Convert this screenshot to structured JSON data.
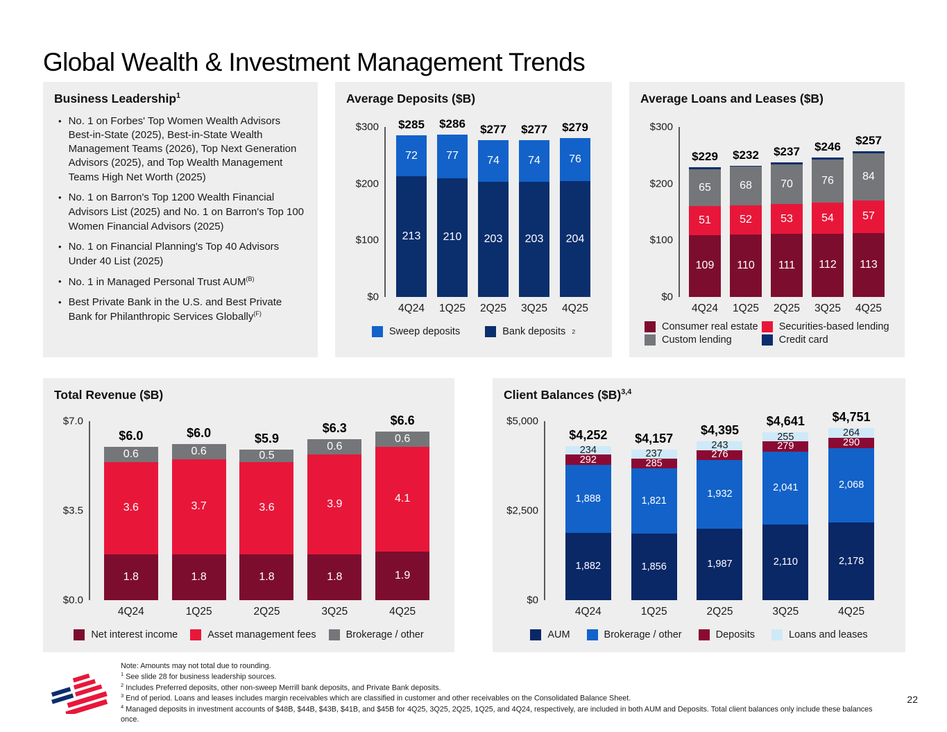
{
  "slide": {
    "title": "Global Wealth & Investment Management Trends",
    "page_number": "22"
  },
  "leadership": {
    "title": "Business Leadership",
    "title_sup": "1",
    "bullets": [
      {
        "text": "No. 1 on Forbes' Top Women Wealth Advisors Best-in-State (2025), Best-in-State Wealth Management Teams (2026), Top Next Generation Advisors (2025), and Top Wealth Management Teams High Net Worth (2025)",
        "sup": ""
      },
      {
        "text": "No. 1 on Barron's Top 1200 Wealth Financial Advisors List (2025) and No. 1 on Barron's Top 100 Women Financial Advisors (2025)",
        "sup": ""
      },
      {
        "text": "No. 1 on Financial Planning's Top 40 Advisors Under 40 List (2025)",
        "sup": ""
      },
      {
        "text": "No. 1 in Managed Personal Trust AUM",
        "sup": "(B)"
      },
      {
        "text": "Best Private Bank in the U.S. and Best Private Bank for Philanthropic Services Globally",
        "sup": "(F)"
      }
    ]
  },
  "colors": {
    "navy": "#0b2e6d",
    "bright_blue": "#1262c9",
    "red": "#e8173a",
    "maroon": "#7d0d2e",
    "deposits_maroon": "#8a0a33",
    "gray": "#747679",
    "light_blue": "#cfe9f8",
    "panel_bg": "#eeeeee",
    "axis": "#58595b"
  },
  "chart_data": [
    {
      "id": "average-deposits",
      "type": "bar",
      "stacked": true,
      "title": "Average Deposits ($B)",
      "title_sup": "",
      "categories": [
        "4Q24",
        "1Q25",
        "2Q25",
        "3Q25",
        "4Q25"
      ],
      "totals": [
        "$285",
        "$286",
        "$277",
        "$277",
        "$279"
      ],
      "ylim": [
        0,
        300
      ],
      "yticks": [
        "$300",
        "$200",
        "$100",
        "$0"
      ],
      "grid": false,
      "legend_position": "bottom",
      "series": [
        {
          "name": "Bank deposits",
          "color": "#0b2e6d",
          "values": [
            213,
            210,
            203,
            203,
            204
          ],
          "labels": [
            "213",
            "210",
            "203",
            "203",
            "204"
          ],
          "label_color": "#ffffff",
          "show_labels": true
        },
        {
          "name": "Sweep deposits",
          "color": "#1262c9",
          "values": [
            72,
            77,
            74,
            74,
            76
          ],
          "labels": [
            "72",
            "77",
            "74",
            "74",
            "76"
          ],
          "label_color": "#ffffff",
          "show_labels": true
        }
      ],
      "legend": [
        {
          "label": "Sweep deposits",
          "sup": "",
          "color": "#1262c9"
        },
        {
          "label": "Bank deposits",
          "sup": "2",
          "color": "#0b2e6d"
        }
      ]
    },
    {
      "id": "average-loans-leases",
      "type": "bar",
      "stacked": true,
      "title": "Average Loans and Leases ($B)",
      "title_sup": "",
      "categories": [
        "4Q24",
        "1Q25",
        "2Q25",
        "3Q25",
        "4Q25"
      ],
      "totals": [
        "$229",
        "$232",
        "$237",
        "$246",
        "$257"
      ],
      "ylim": [
        0,
        300
      ],
      "yticks": [
        "$300",
        "$200",
        "$100",
        "$0"
      ],
      "grid": false,
      "legend_position": "bottom",
      "series": [
        {
          "name": "Consumer real estate",
          "color": "#7d0d2e",
          "values": [
            109,
            110,
            111,
            112,
            113
          ],
          "labels": [
            "109",
            "110",
            "111",
            "112",
            "113"
          ],
          "label_color": "#ffffff",
          "show_labels": true
        },
        {
          "name": "Securities-based lending",
          "color": "#e8173a",
          "values": [
            51,
            52,
            53,
            54,
            57
          ],
          "labels": [
            "51",
            "52",
            "53",
            "54",
            "57"
          ],
          "label_color": "#ffffff",
          "show_labels": true
        },
        {
          "name": "Custom lending",
          "color": "#747679",
          "values": [
            65,
            68,
            70,
            76,
            84
          ],
          "labels": [
            "65",
            "68",
            "70",
            "76",
            "84"
          ],
          "label_color": "#ffffff",
          "show_labels": true
        },
        {
          "name": "Credit card",
          "color": "#0b2e6d",
          "values": [
            4,
            2,
            3,
            4,
            3
          ],
          "labels": [
            "",
            "",
            "",
            "",
            ""
          ],
          "label_color": "#ffffff",
          "show_labels": false
        }
      ],
      "legend": [
        {
          "label": "Consumer real estate",
          "sup": "",
          "color": "#7d0d2e"
        },
        {
          "label": "Securities-based lending",
          "sup": "",
          "color": "#e8173a"
        },
        {
          "label": "Custom lending",
          "sup": "",
          "color": "#747679"
        },
        {
          "label": "Credit card",
          "sup": "",
          "color": "#0b2e6d"
        }
      ]
    },
    {
      "id": "total-revenue",
      "type": "bar",
      "stacked": true,
      "title": "Total Revenue ($B)",
      "title_sup": "",
      "categories": [
        "4Q24",
        "1Q25",
        "2Q25",
        "3Q25",
        "4Q25"
      ],
      "totals": [
        "$6.0",
        "$6.0",
        "$5.9",
        "$6.3",
        "$6.6"
      ],
      "ylim": [
        0,
        7
      ],
      "yticks": [
        "$7.0",
        "$3.5",
        "$0.0"
      ],
      "grid": false,
      "legend_position": "bottom",
      "series": [
        {
          "name": "Net interest income",
          "color": "#7d0d2e",
          "values": [
            1.8,
            1.8,
            1.8,
            1.8,
            1.9
          ],
          "labels": [
            "1.8",
            "1.8",
            "1.8",
            "1.8",
            "1.9"
          ],
          "label_color": "#ffffff",
          "show_labels": true
        },
        {
          "name": "Asset management fees",
          "color": "#e8173a",
          "values": [
            3.6,
            3.7,
            3.6,
            3.9,
            4.1
          ],
          "labels": [
            "3.6",
            "3.7",
            "3.6",
            "3.9",
            "4.1"
          ],
          "label_color": "#ffffff",
          "show_labels": true
        },
        {
          "name": "Brokerage / other",
          "color": "#747679",
          "values": [
            0.6,
            0.6,
            0.5,
            0.6,
            0.6
          ],
          "labels": [
            "0.6",
            "0.6",
            "0.5",
            "0.6",
            "0.6"
          ],
          "label_color": "#ffffff",
          "show_labels": true
        }
      ],
      "legend": [
        {
          "label": "Net interest income",
          "sup": "",
          "color": "#7d0d2e"
        },
        {
          "label": "Asset management fees",
          "sup": "",
          "color": "#e8173a"
        },
        {
          "label": "Brokerage / other",
          "sup": "",
          "color": "#747679"
        }
      ]
    },
    {
      "id": "client-balances",
      "type": "bar",
      "stacked": true,
      "title": "Client Balances ($B)",
      "title_sup": "3,4",
      "categories": [
        "4Q24",
        "1Q25",
        "2Q25",
        "3Q25",
        "4Q25"
      ],
      "totals": [
        "$4,252",
        "$4,157",
        "$4,395",
        "$4,641",
        "$4,751"
      ],
      "ylim": [
        0,
        5000
      ],
      "yticks": [
        "$5,000",
        "$2,500",
        "$0"
      ],
      "grid": false,
      "legend_position": "bottom",
      "series": [
        {
          "name": "AUM",
          "color": "#0a2766",
          "values": [
            1882,
            1856,
            1987,
            2110,
            2178
          ],
          "labels": [
            "1,882",
            "1,856",
            "1,987",
            "2,110",
            "2,178"
          ],
          "label_color": "#ffffff",
          "show_labels": true
        },
        {
          "name": "Brokerage / other",
          "color": "#1262c9",
          "values": [
            1888,
            1821,
            1932,
            2041,
            2068
          ],
          "labels": [
            "1,888",
            "1,821",
            "1,932",
            "2,041",
            "2,068"
          ],
          "label_color": "#ffffff",
          "show_labels": true
        },
        {
          "name": "Deposits",
          "color": "#8a0a33",
          "values": [
            292,
            285,
            276,
            279,
            290
          ],
          "labels": [
            "292",
            "285",
            "276",
            "279",
            "290"
          ],
          "label_color": "#ffffff",
          "show_labels": true
        },
        {
          "name": "Loans and leases",
          "color": "#cfe9f8",
          "values": [
            234,
            237,
            243,
            255,
            264
          ],
          "labels": [
            "234",
            "237",
            "243",
            "255",
            "264"
          ],
          "label_color": "#1a1a1a",
          "show_labels": true
        }
      ],
      "legend": [
        {
          "label": "AUM",
          "sup": "",
          "color": "#0a2766"
        },
        {
          "label": "Brokerage / other",
          "sup": "",
          "color": "#1262c9"
        },
        {
          "label": "Deposits",
          "sup": "",
          "color": "#8a0a33"
        },
        {
          "label": "Loans and leases",
          "sup": "",
          "color": "#cfe9f8"
        }
      ]
    }
  ],
  "footnotes": {
    "note": "Note: Amounts may not total due to rounding.",
    "items": [
      {
        "sup": "1",
        "text": "See slide 28 for business leadership sources."
      },
      {
        "sup": "2",
        "text": "Includes Preferred deposits, other non-sweep Merrill bank deposits, and Private Bank deposits."
      },
      {
        "sup": "3",
        "text": "End of period. Loans and leases includes margin receivables which are classified in customer and other receivables on the Consolidated Balance Sheet."
      },
      {
        "sup": "4",
        "text": "Managed deposits in investment accounts of $48B, $44B, $43B, $41B, and $45B for 4Q25, 3Q25, 2Q25, 1Q25, and 4Q24, respectively, are included in both AUM and Deposits. Total client balances only include these balances once."
      }
    ]
  }
}
